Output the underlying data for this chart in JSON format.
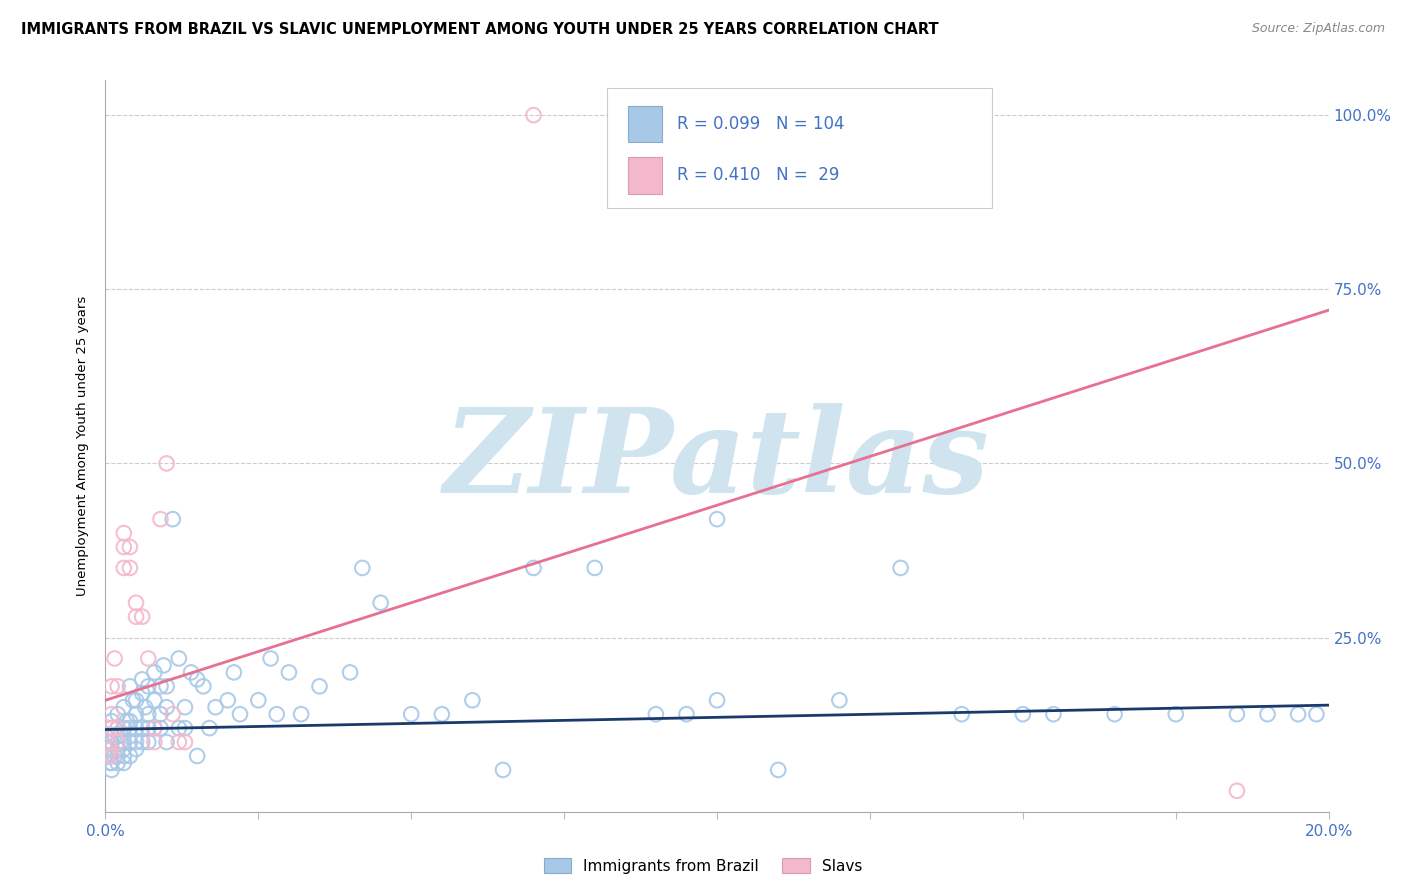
{
  "title": "IMMIGRANTS FROM BRAZIL VS SLAVIC UNEMPLOYMENT AMONG YOUTH UNDER 25 YEARS CORRELATION CHART",
  "source": "Source: ZipAtlas.com",
  "ylabel": "Unemployment Among Youth under 25 years",
  "legend_r1": "0.099",
  "legend_n1": "104",
  "legend_r2": "0.410",
  "legend_n2": "29",
  "legend_label1": "Immigrants from Brazil",
  "legend_label2": "Slavs",
  "blue_color": "#a8c8e8",
  "pink_color": "#f4b8cc",
  "trend_blue": "#1a3a6b",
  "trend_pink": "#e87090",
  "axis_color": "#4472c4",
  "watermark": "ZIPatlas",
  "watermark_color": "#d0e4f0",
  "blue_scatter_x": [
    0.0003,
    0.0005,
    0.0007,
    0.0008,
    0.001,
    0.001,
    0.001,
    0.001,
    0.001,
    0.001,
    0.001,
    0.001,
    0.0015,
    0.0015,
    0.002,
    0.002,
    0.002,
    0.002,
    0.002,
    0.002,
    0.0025,
    0.0025,
    0.003,
    0.003,
    0.003,
    0.003,
    0.003,
    0.003,
    0.0035,
    0.004,
    0.004,
    0.004,
    0.004,
    0.004,
    0.0045,
    0.005,
    0.005,
    0.005,
    0.005,
    0.005,
    0.006,
    0.006,
    0.006,
    0.006,
    0.0065,
    0.007,
    0.007,
    0.007,
    0.007,
    0.008,
    0.008,
    0.008,
    0.009,
    0.009,
    0.009,
    0.0095,
    0.01,
    0.01,
    0.01,
    0.011,
    0.012,
    0.012,
    0.013,
    0.013,
    0.014,
    0.015,
    0.015,
    0.016,
    0.017,
    0.018,
    0.02,
    0.021,
    0.022,
    0.025,
    0.027,
    0.028,
    0.03,
    0.032,
    0.035,
    0.04,
    0.042,
    0.045,
    0.05,
    0.055,
    0.06,
    0.065,
    0.07,
    0.08,
    0.09,
    0.095,
    0.1,
    0.11,
    0.13,
    0.14,
    0.15,
    0.155,
    0.165,
    0.175,
    0.185,
    0.19,
    0.195,
    0.198,
    0.1,
    0.12
  ],
  "blue_scatter_y": [
    0.1,
    0.08,
    0.09,
    0.07,
    0.1,
    0.12,
    0.07,
    0.08,
    0.11,
    0.13,
    0.06,
    0.09,
    0.11,
    0.08,
    0.1,
    0.12,
    0.07,
    0.14,
    0.09,
    0.08,
    0.11,
    0.1,
    0.1,
    0.12,
    0.08,
    0.15,
    0.07,
    0.09,
    0.13,
    0.13,
    0.1,
    0.18,
    0.08,
    0.12,
    0.16,
    0.12,
    0.09,
    0.16,
    0.1,
    0.14,
    0.12,
    0.17,
    0.1,
    0.19,
    0.15,
    0.12,
    0.18,
    0.1,
    0.14,
    0.16,
    0.12,
    0.2,
    0.18,
    0.14,
    0.12,
    0.21,
    0.1,
    0.15,
    0.18,
    0.42,
    0.22,
    0.12,
    0.15,
    0.12,
    0.2,
    0.19,
    0.08,
    0.18,
    0.12,
    0.15,
    0.16,
    0.2,
    0.14,
    0.16,
    0.22,
    0.14,
    0.2,
    0.14,
    0.18,
    0.2,
    0.35,
    0.3,
    0.14,
    0.14,
    0.16,
    0.06,
    0.35,
    0.35,
    0.14,
    0.14,
    0.16,
    0.06,
    0.35,
    0.14,
    0.14,
    0.14,
    0.14,
    0.14,
    0.14,
    0.14,
    0.14,
    0.14,
    0.42,
    0.16
  ],
  "pink_scatter_x": [
    0.0003,
    0.0005,
    0.0008,
    0.001,
    0.001,
    0.001,
    0.001,
    0.0015,
    0.002,
    0.002,
    0.002,
    0.003,
    0.003,
    0.003,
    0.004,
    0.004,
    0.005,
    0.005,
    0.006,
    0.007,
    0.008,
    0.008,
    0.009,
    0.01,
    0.011,
    0.012,
    0.013,
    0.185,
    0.07
  ],
  "pink_scatter_y": [
    0.08,
    0.1,
    0.09,
    0.12,
    0.14,
    0.18,
    0.08,
    0.22,
    0.1,
    0.12,
    0.18,
    0.35,
    0.38,
    0.4,
    0.35,
    0.38,
    0.28,
    0.3,
    0.28,
    0.22,
    0.1,
    0.12,
    0.42,
    0.5,
    0.14,
    0.1,
    0.1,
    0.03,
    1.0
  ],
  "blue_trend_x": [
    0.0,
    0.2
  ],
  "blue_trend_y": [
    0.118,
    0.153
  ],
  "pink_trend_x": [
    0.0,
    0.2
  ],
  "pink_trend_y": [
    0.16,
    0.72
  ],
  "xlim": [
    0.0,
    0.2
  ],
  "ylim": [
    0.0,
    1.05
  ],
  "yticks": [
    0.0,
    0.25,
    0.5,
    0.75,
    1.0
  ],
  "ytick_labels_right": [
    "",
    "25.0%",
    "50.0%",
    "75.0%",
    "100.0%"
  ],
  "xticks": [
    0.0,
    0.025,
    0.05,
    0.075,
    0.1,
    0.125,
    0.15,
    0.175,
    0.2
  ],
  "xtick_labels": [
    "0.0%",
    "",
    "",
    "",
    "",
    "",
    "",
    "",
    "20.0%"
  ]
}
